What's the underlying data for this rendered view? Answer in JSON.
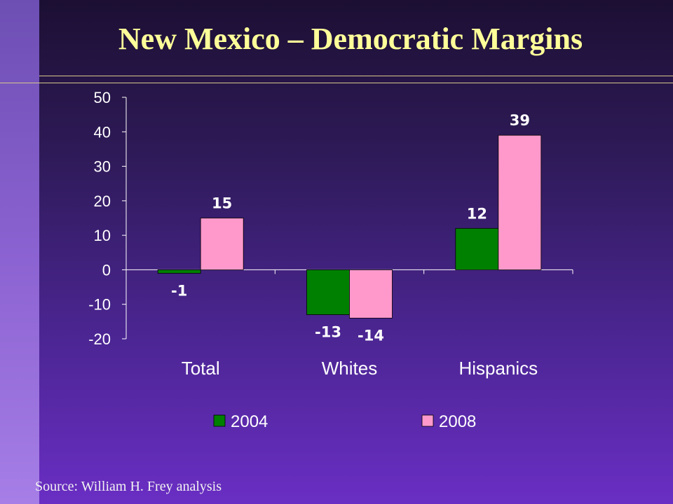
{
  "slide": {
    "title": "New Mexico – Democratic Margins",
    "source": "Source: William H. Frey analysis"
  },
  "colors": {
    "title": "#ffff99",
    "series_2004": "#008000",
    "series_2008": "#ff99cc",
    "label_text": "#ffffff"
  },
  "chart_data": {
    "type": "bar",
    "title": "",
    "xlabel": "",
    "ylabel": "",
    "categories": [
      "Total",
      "Whites",
      "Hispanics"
    ],
    "series": [
      {
        "name": "2004",
        "values": [
          -1,
          -13,
          12
        ],
        "color": "#008000"
      },
      {
        "name": "2008",
        "values": [
          15,
          -14,
          39
        ],
        "color": "#ff99cc"
      }
    ],
    "ylim": [
      -20,
      50
    ],
    "yticks": [
      50,
      40,
      30,
      20,
      10,
      0,
      -10,
      -20
    ],
    "grid": false,
    "legend": "bottom"
  }
}
